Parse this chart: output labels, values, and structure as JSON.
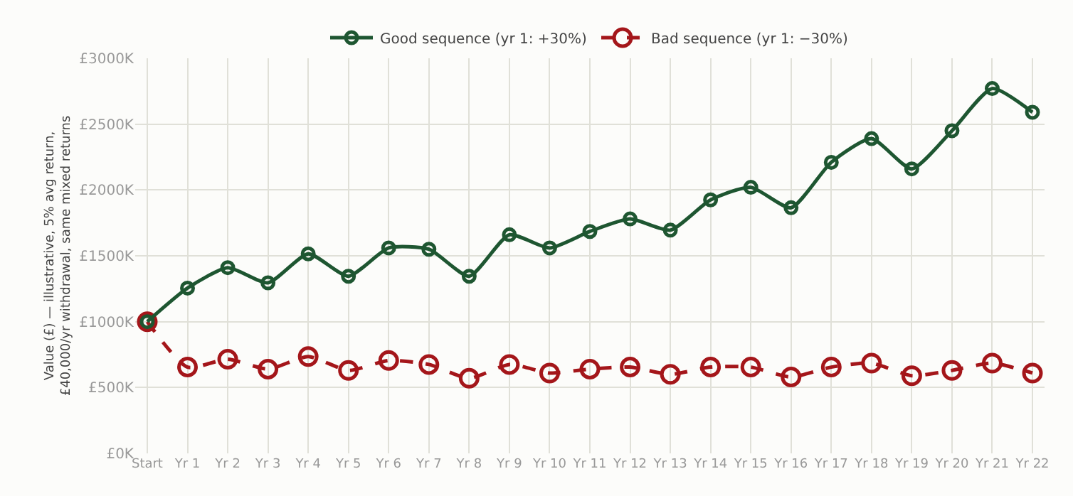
{
  "chart_data": {
    "type": "line",
    "ylabel": "Value (£) — illustrative, 5% avg return, £40,000/yr withdrawal, same mixed returns",
    "categories": [
      "Start",
      "Yr 1",
      "Yr 2",
      "Yr 3",
      "Yr 4",
      "Yr 5",
      "Yr 6",
      "Yr 7",
      "Yr 8",
      "Yr 9",
      "Yr 10",
      "Yr 11",
      "Yr 12",
      "Yr 13",
      "Yr 14",
      "Yr 15",
      "Yr 16",
      "Yr 17",
      "Yr 18",
      "Yr 19",
      "Yr 20",
      "Yr 21",
      "Yr 22"
    ],
    "series": [
      {
        "name": "Good sequence (yr 1: +30%)",
        "color": "#1e5631",
        "line_style": "solid",
        "values": [
          1000,
          1255,
          1410,
          1295,
          1515,
          1345,
          1560,
          1550,
          1345,
          1660,
          1560,
          1685,
          1780,
          1695,
          1925,
          2020,
          1865,
          2210,
          2390,
          2160,
          2450,
          2770,
          2590
        ]
      },
      {
        "name": "Bad sequence (yr 1: −30%)",
        "color": "#a4161a",
        "line_style": "dashed",
        "values": [
          1000,
          655,
          715,
          640,
          735,
          630,
          705,
          675,
          570,
          675,
          610,
          640,
          655,
          600,
          655,
          655,
          580,
          655,
          685,
          590,
          630,
          685,
          610
        ]
      }
    ],
    "ylim": [
      0,
      3000
    ],
    "yticks": [
      {
        "value": 0,
        "label": "£0K"
      },
      {
        "value": 500,
        "label": "£500K"
      },
      {
        "value": 1000,
        "label": "£1000K"
      },
      {
        "value": 1500,
        "label": "£1500K"
      },
      {
        "value": 2000,
        "label": "£2000K"
      },
      {
        "value": 2500,
        "label": "£2500K"
      },
      {
        "value": 3000,
        "label": "£3000K"
      }
    ],
    "grid": true,
    "legend": "top",
    "marker": "circle"
  }
}
